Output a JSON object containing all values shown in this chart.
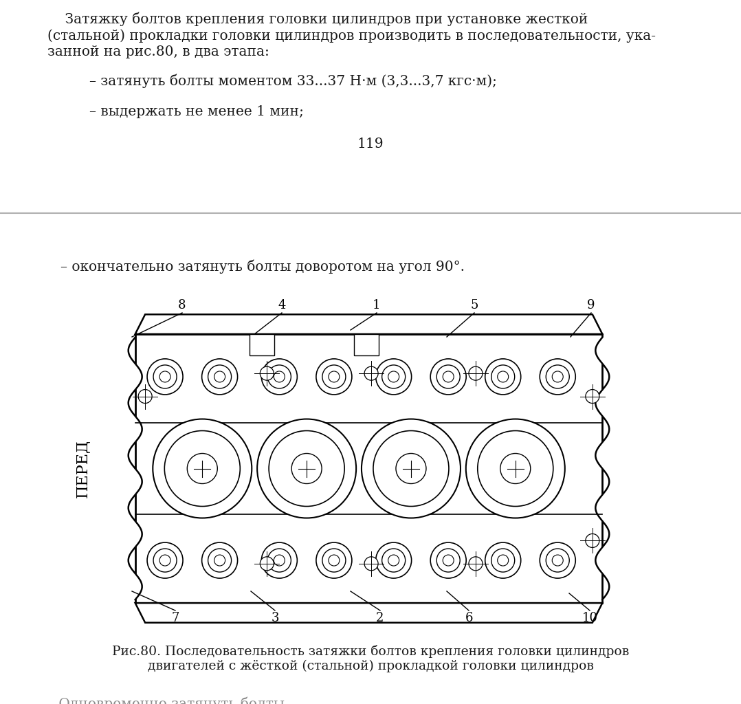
{
  "bg_color": "#ffffff",
  "separator_color": "#b0b0b0",
  "text_color": "#1a1a1a",
  "top_paragraph_line1": "    Затяжку болтов крепления головки цилиндров при установке жесткой",
  "top_paragraph_line2": "(стальной) прокладки головки цилиндров производить в последовательности, ука-",
  "top_paragraph_line3": "занной на рис.80, в два этапа:",
  "bullet1": "– затянуть болты моментом 33...37 Н·м (3,3...3,7 кгс·м);",
  "bullet2": "– выдержать не менее 1 мин;",
  "page_number": "119",
  "bottom_bullet": "– окончательно затянуть болты доворотом на угол 90°.",
  "fig_caption_line1": "Рис.80. Последовательность затяжки болтов крепления головки цилиндров",
  "fig_caption_line2": "двигателей с жёсткой (стальной) прокладкой головки цилиндров",
  "left_text": "ПЕРЕД",
  "font_size_main": 14.5,
  "font_size_caption": 13.5
}
